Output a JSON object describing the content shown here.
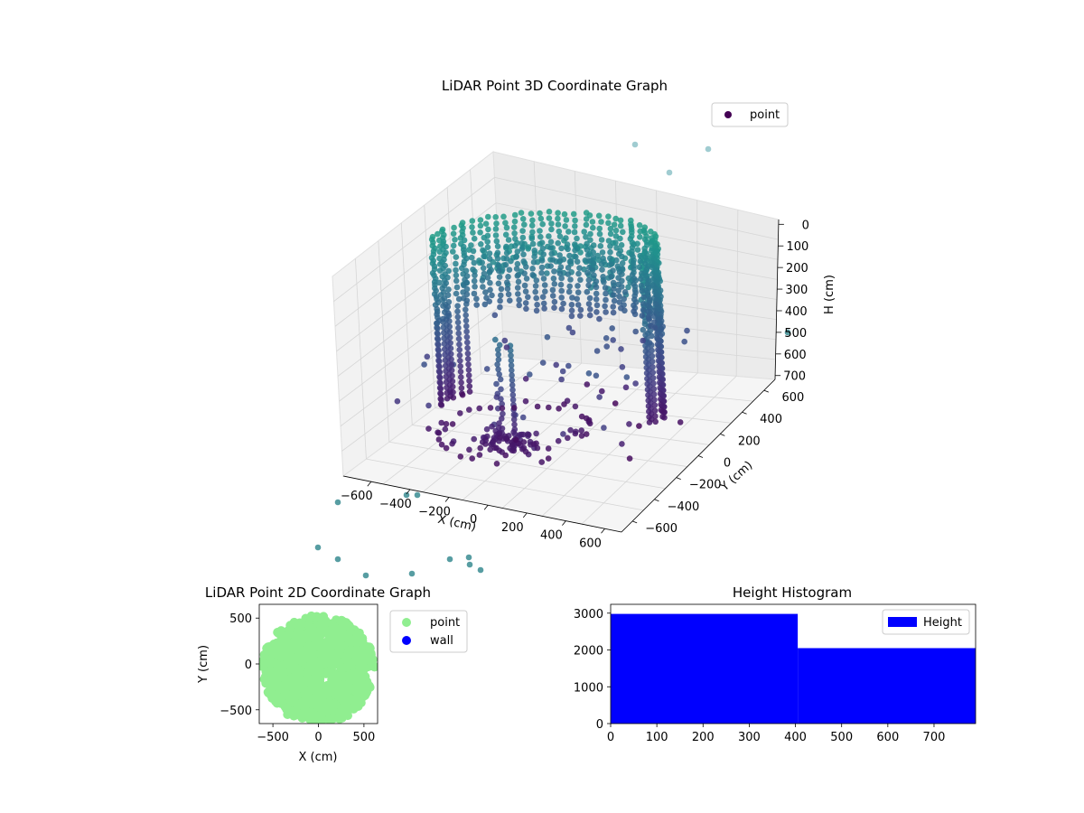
{
  "colors": {
    "viridis_dark": "#440154",
    "viridis_mid": "#3b528b",
    "viridis_teal": "#21918c",
    "viridis_light": "#5ec962",
    "scatter2d_point": "#90ee90",
    "scatter2d_wall": "#0000ff",
    "histogram": "#0000ff"
  },
  "chart_data": [
    {
      "id": "lidar3d",
      "type": "scatter",
      "projection": "3d",
      "title": "LiDAR Point 3D Coordinate Graph",
      "xlabel": "X (cm)",
      "ylabel": "Y (cm)",
      "zlabel": "H (cm)",
      "xlim": [
        -700,
        700
      ],
      "ylim": [
        -700,
        700
      ],
      "zlim": [
        0,
        750
      ],
      "z_inverted": true,
      "xticks": [
        "−600",
        "−400",
        "−200",
        "0",
        "200",
        "400",
        "600"
      ],
      "yticks": [
        "−600",
        "−400",
        "−200",
        "0",
        "200",
        "400",
        "600"
      ],
      "zticks": [
        "0",
        "100",
        "200",
        "300",
        "400",
        "500",
        "600",
        "700"
      ],
      "legend": {
        "entries": [
          "point"
        ],
        "placement": "top-right"
      },
      "colormap": "viridis",
      "description_of_points": "Curved wall of points forming an approximate half-cylinder of radius ~600 cm, heights ~50–400 cm, plus sparse outliers; colored by height with viridis",
      "grid": true
    },
    {
      "id": "lidar2d",
      "type": "scatter",
      "title": "LiDAR Point 2D Coordinate Graph",
      "xlabel": "X (cm)",
      "ylabel": "Y (cm)",
      "xlim": [
        -650,
        650
      ],
      "ylim": [
        -650,
        650
      ],
      "xticks": [
        "−500",
        "0",
        "500"
      ],
      "yticks": [
        "−500",
        "0",
        "500"
      ],
      "series": [
        {
          "name": "point",
          "color": "#90ee90"
        },
        {
          "name": "wall",
          "color": "#0000ff"
        }
      ],
      "legend": {
        "placement": "outside-right"
      },
      "grid": false
    },
    {
      "id": "height_hist",
      "type": "bar",
      "title": "Height Histogram",
      "xlabel": "",
      "ylabel": "",
      "bins": [
        {
          "start": 0,
          "end": 405,
          "count": 2980
        },
        {
          "start": 405,
          "end": 790,
          "count": 2050
        }
      ],
      "xlim": [
        0,
        790
      ],
      "ylim": [
        0,
        3240
      ],
      "xticks": [
        0,
        100,
        200,
        300,
        400,
        500,
        600,
        700
      ],
      "yticks": [
        0,
        1000,
        2000,
        3000
      ],
      "legend": {
        "entries": [
          "Height"
        ],
        "placement": "top-right"
      },
      "grid": false
    }
  ]
}
